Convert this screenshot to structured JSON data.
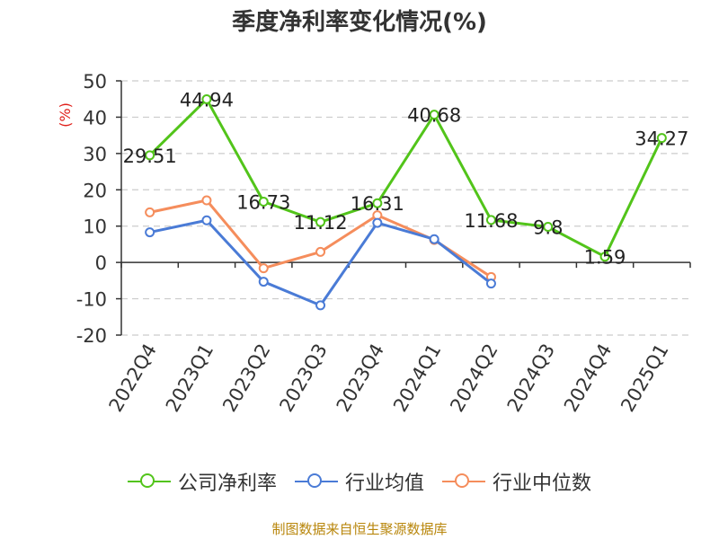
{
  "title": "季度净利率变化情况(%)",
  "source": "制图数据来自恒生聚源数据库",
  "colors": {
    "company": "#52c41a",
    "industry_avg": "#4a7bd6",
    "industry_median": "#f58d5c"
  },
  "chart_data": {
    "type": "line",
    "title": "季度净利率变化情况(%)",
    "ylabel": "(%)",
    "xlabel": "",
    "ylim": [
      -20,
      50
    ],
    "yticks": [
      50,
      40,
      30,
      20,
      10,
      0,
      -10,
      -20
    ],
    "grid": true,
    "legend_position": "bottom",
    "categories": [
      "2022Q4",
      "2023Q1",
      "2023Q2",
      "2023Q3",
      "2023Q4",
      "2024Q1",
      "2024Q2",
      "2024Q3",
      "2024Q4",
      "2025Q1"
    ],
    "series": [
      {
        "name": "公司净利率",
        "values": [
          29.51,
          44.94,
          16.73,
          11.12,
          16.31,
          40.68,
          11.68,
          9.8,
          1.59,
          34.27
        ],
        "labels": [
          "29.51",
          "44.94",
          "16.73",
          "11.12",
          "16.31",
          "40.68",
          "11.68",
          "9.8",
          "1.59",
          "34.27"
        ]
      },
      {
        "name": "行业均值",
        "values": [
          8.3,
          11.6,
          -5.3,
          -11.8,
          10.9,
          6.4,
          -5.8,
          null,
          null,
          null
        ]
      },
      {
        "name": "行业中位数",
        "values": [
          13.8,
          17.1,
          -1.6,
          2.9,
          13.0,
          6.2,
          -4.0,
          null,
          null,
          null
        ]
      }
    ]
  }
}
